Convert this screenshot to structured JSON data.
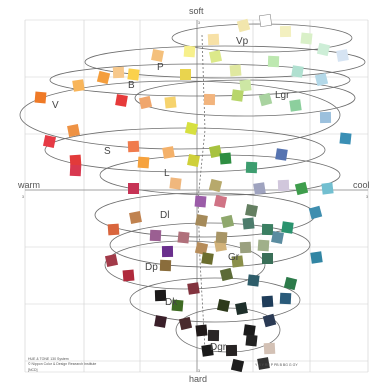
{
  "axes": {
    "top": "soft",
    "bottom": "hard",
    "left": "warm",
    "right": "cool",
    "left_value": "3",
    "right_value": "3",
    "top_value": "3",
    "bottom_value": "3"
  },
  "zones": [
    {
      "code": "Vp"
    },
    {
      "code": "P"
    },
    {
      "code": "B"
    },
    {
      "code": "Lgr"
    },
    {
      "code": "V"
    },
    {
      "code": "S"
    },
    {
      "code": "L"
    },
    {
      "code": "Dl"
    },
    {
      "code": "Gr"
    },
    {
      "code": "Dp"
    },
    {
      "code": "Dk"
    },
    {
      "code": "Dgr"
    }
  ],
  "colors": {
    "grid": "#cfcfcf",
    "axis": "#8a8a8a",
    "curve": "#6e6e6e",
    "background": "#ffffff"
  },
  "footer": {
    "left_line1": "HUE & TONE 130 System",
    "left_line2": "© Nippon Color & Design Research Institute",
    "left_tag": "[NCD]",
    "right_text": "Y  R  Y  RP  P  PB  B  BG  G  GY"
  }
}
